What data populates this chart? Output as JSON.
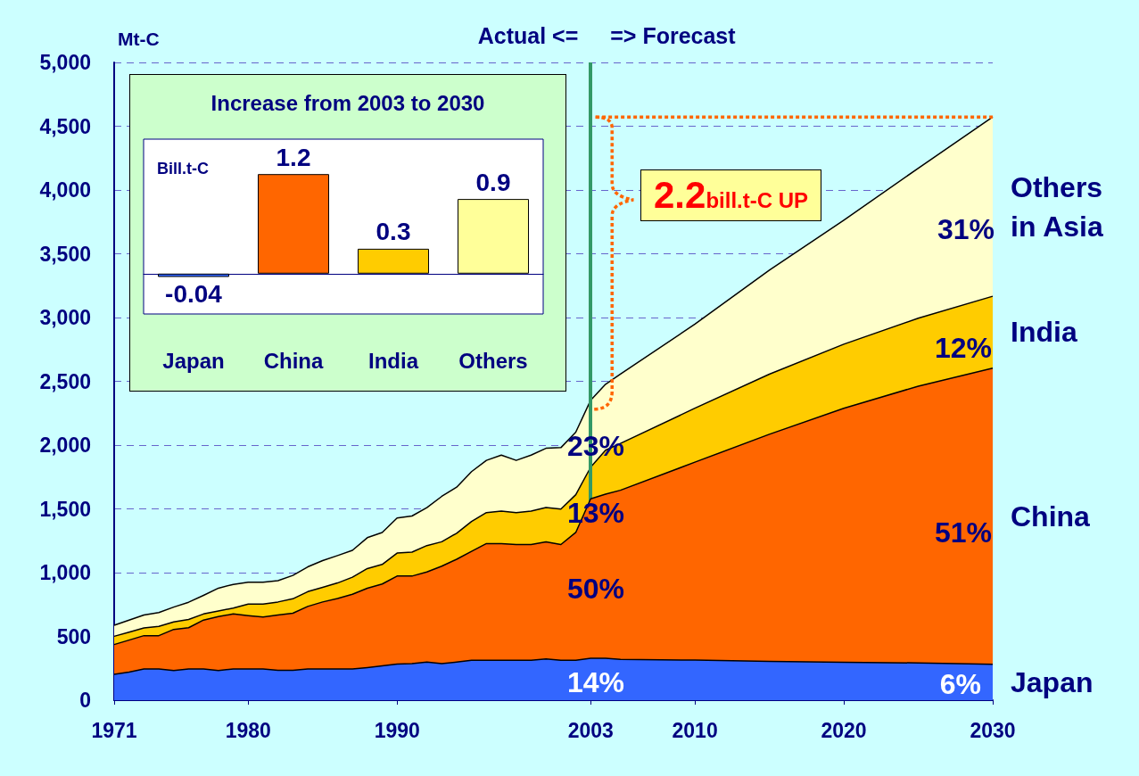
{
  "chart_data": [
    {
      "type": "area",
      "ylabel": "Mt-C",
      "stacked": true,
      "x": [
        1971,
        1972,
        1973,
        1974,
        1975,
        1976,
        1977,
        1978,
        1979,
        1980,
        1981,
        1982,
        1983,
        1984,
        1985,
        1986,
        1987,
        1988,
        1989,
        1990,
        1991,
        1992,
        1993,
        1994,
        1995,
        1996,
        1997,
        1998,
        1999,
        2000,
        2001,
        2002,
        2003,
        2004,
        2005,
        2010,
        2015,
        2020,
        2025,
        2030
      ],
      "series": [
        {
          "name": "Japan",
          "color": "#3366ff",
          "values": [
            202,
            221,
            245,
            245,
            232,
            245,
            245,
            232,
            245,
            245,
            245,
            234,
            234,
            245,
            245,
            245,
            245,
            256,
            269,
            283,
            286,
            299,
            286,
            299,
            313,
            313,
            313,
            313,
            313,
            323,
            313,
            313,
            329,
            329,
            320,
            314,
            304,
            298,
            292,
            282
          ]
        },
        {
          "name": "China",
          "color": "#ff6600",
          "values": [
            234,
            250,
            261,
            261,
            323,
            323,
            383,
            423,
            431,
            418,
            407,
            434,
            448,
            490,
            525,
            552,
            585,
            622,
            642,
            690,
            687,
            706,
            765,
            806,
            854,
            915,
            915,
            907,
            907,
            919,
            907,
            1002,
            1250,
            1286,
            1326,
            1552,
            1781,
            1991,
            2170,
            2321
          ]
        },
        {
          "name": "India",
          "color": "#ffcc00",
          "values": [
            65,
            62,
            60,
            73,
            59,
            65,
            48,
            45,
            46,
            91,
            102,
            102,
            113,
            116,
            114,
            122,
            134,
            154,
            153,
            180,
            188,
            207,
            191,
            204,
            234,
            243,
            254,
            251,
            262,
            269,
            278,
            296,
            248,
            345,
            367,
            423,
            471,
            502,
            533,
            564
          ]
        },
        {
          "name": "Others in Asia",
          "color": "#ffffcc",
          "values": [
            86,
            95,
            102,
            108,
            116,
            135,
            146,
            178,
            186,
            170,
            170,
            167,
            183,
            194,
            210,
            215,
            211,
            242,
            251,
            275,
            283,
            297,
            356,
            361,
            391,
            409,
            439,
            409,
            439,
            464,
            482,
            490,
            525,
            517,
            543,
            659,
            815,
            972,
            1176,
            1405
          ]
        }
      ],
      "xlim": [
        1971,
        2030
      ],
      "xticks": [
        1971,
        1980,
        1990,
        2003,
        2010,
        2020,
        2030
      ],
      "ylim": [
        0,
        5000
      ],
      "yticks": [
        0,
        500,
        {
          "value": 1000,
          "label": "1,000"
        },
        {
          "value": 1500,
          "label": "1,500"
        },
        {
          "value": 2000,
          "label": "2,000"
        },
        {
          "value": 2500,
          "label": "2,500"
        },
        {
          "value": 3000,
          "label": "3,000"
        },
        {
          "value": 3500,
          "label": "3,500"
        },
        {
          "value": 4000,
          "label": "4,000"
        },
        {
          "value": 4500,
          "label": "4,500"
        },
        {
          "value": 5000,
          "label": "5,000"
        }
      ],
      "grid": "y",
      "legend": false,
      "ref_lines": [
        {
          "axis": "x",
          "value": 2003,
          "color": "#339966"
        }
      ],
      "annotations": [
        "14%",
        "50%",
        "13%",
        "23%",
        "6%",
        "51%",
        "12%",
        "31%",
        "Actual <=",
        "=> Forecast",
        "2.2$_{bill.t-C UP}$"
      ]
    },
    {
      "type": "bar",
      "title": "Increase from 2003 to 2030",
      "ylabel": "Bill.t-C",
      "categories": [
        "Japan",
        "China",
        "India",
        "Others"
      ],
      "values": [
        -0.04,
        1.2,
        0.3,
        0.9
      ],
      "colors": [
        "#3366ff",
        "#ff6600",
        "#ffcc00",
        "#ffff99"
      ],
      "data_labels": true
    }
  ]
}
